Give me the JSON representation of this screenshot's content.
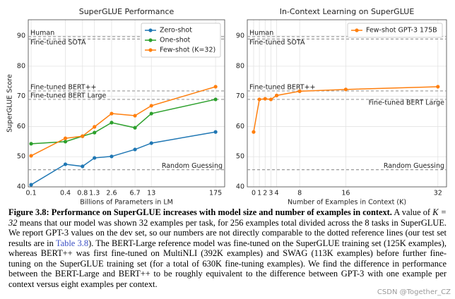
{
  "chart_data": [
    {
      "type": "line",
      "title": "SuperGLUE Performance",
      "xlabel": "Billions of Parameters in LM",
      "ylabel": "SuperGLUE Score",
      "xscale": "log",
      "x": [
        0.1,
        0.4,
        0.8,
        1.3,
        2.6,
        6.7,
        13,
        175
      ],
      "xlim": [
        0.089,
        253
      ],
      "xticks": [
        0.1,
        0.4,
        0.8,
        1.3,
        2.6,
        6.7,
        13,
        175
      ],
      "ylim": [
        40,
        95.4
      ],
      "yticks": [
        40,
        50,
        60,
        70,
        80,
        90
      ],
      "grid": true,
      "legend": "upper right",
      "series": [
        {
          "name": "Zero-shot",
          "color": "#1f77b4",
          "values": [
            40.7,
            47.5,
            46.8,
            49.6,
            50.1,
            52.4,
            54.5,
            58.2
          ]
        },
        {
          "name": "One-shot",
          "color": "#2ca02c",
          "values": [
            54.3,
            55.0,
            56.8,
            58.0,
            61.3,
            59.6,
            64.3,
            69.0
          ]
        },
        {
          "name": "Few-shot (K=32)",
          "color": "#ff7f0e",
          "values": [
            50.3,
            56.1,
            56.8,
            59.9,
            64.3,
            63.6,
            66.9,
            73.2
          ]
        }
      ],
      "reference_lines": [
        {
          "label": "Human",
          "value": 89.8
        },
        {
          "label": "Fine-tuned SOTA",
          "value": 89.0
        },
        {
          "label": "Fine-tuned BERT++",
          "value": 71.8
        },
        {
          "label": "Fine-tuned BERT Large",
          "value": 69.0
        },
        {
          "label": "Random Guessing",
          "value": 45.7
        }
      ]
    },
    {
      "type": "line",
      "title": "In-Context Learning on SuperGLUE",
      "xlabel": "Number of Examples in Context (K)",
      "xscale": "linear",
      "x": [
        0,
        1,
        2,
        3,
        4,
        8,
        16,
        32
      ],
      "xlim": [
        -1.1,
        33.5
      ],
      "xticks": [
        0,
        1,
        2,
        3,
        4,
        8,
        16,
        32
      ],
      "ylim": [
        40,
        95.4
      ],
      "yticks": [
        40,
        50,
        60,
        70,
        80,
        90
      ],
      "grid": true,
      "legend": "upper right",
      "series": [
        {
          "name": "Few-shot GPT-3 175B",
          "color": "#ff7f0e",
          "values": [
            58.2,
            69.0,
            69.2,
            69.0,
            70.3,
            71.7,
            72.3,
            73.2
          ]
        }
      ],
      "reference_lines": [
        {
          "label": "Human",
          "value": 89.8
        },
        {
          "label": "Fine-tuned SOTA",
          "value": 89.0
        },
        {
          "label": "Fine-tuned BERT++",
          "value": 71.8
        },
        {
          "label": "Fine-tuned BERT Large",
          "value": 69.0
        },
        {
          "label": "Random Guessing",
          "value": 45.7
        }
      ]
    }
  ],
  "caption": {
    "label": "Figure 3.8:",
    "headline": "Performance on SuperGLUE increases with model size and number of examples in context.",
    "text_1": "A value of",
    "k_expr": "K = 32",
    "text_2": "means that our model was shown 32 examples per task, for 256 examples total divided across the 8 tasks in SuperGLUE. We report GPT-3 values on the dev set, so our numbers are not directly comparable to the dotted reference lines (our test set results are in",
    "link": "Table 3.8",
    "text_3": "). The BERT-Large reference model was fine-tuned on the SuperGLUE training set (125K examples), whereas BERT++ was first fine-tuned on MultiNLI (392K examples) and SWAG (113K examples) before further fine-tuning on the SuperGLUE training set (for a total of 630K fine-tuning examples). We find the difference in performance between the BERT-Large and BERT++ to be roughly equivalent to the difference between GPT-3 with one example per context versus eight examples per context."
  },
  "watermark": "CSDN @Together_CZ"
}
